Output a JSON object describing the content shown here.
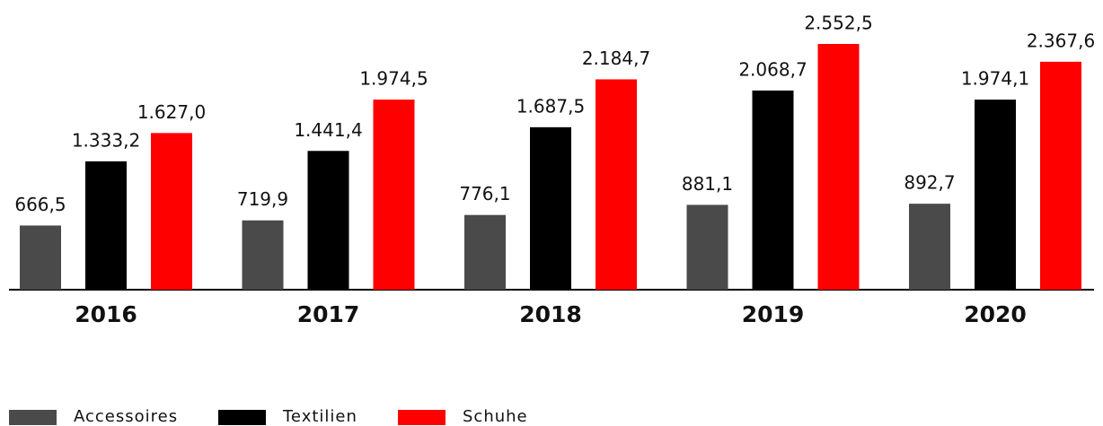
{
  "chart_data": {
    "type": "bar",
    "categories": [
      "2016",
      "2017",
      "2018",
      "2019",
      "2020"
    ],
    "series": [
      {
        "name": "Accessoires",
        "color": "#4a4a4a",
        "values": [
          666.5,
          719.9,
          776.1,
          881.1,
          892.7
        ],
        "value_labels": [
          "666,5",
          "719,9",
          "776,1",
          "881,1",
          "892,7"
        ]
      },
      {
        "name": "Textilien",
        "color": "#000000",
        "values": [
          1333.2,
          1441.4,
          1687.5,
          2068.7,
          1974.1
        ],
        "value_labels": [
          "1.333,2",
          "1.441,4",
          "1.687,5",
          "2.068,7",
          "1.974,1"
        ]
      },
      {
        "name": "Schuhe",
        "color": "#ff0000",
        "values": [
          1627.0,
          1974.5,
          2184.7,
          2552.5,
          2367.6
        ],
        "value_labels": [
          "1.627,0",
          "1.974,5",
          "2.184,7",
          "2.552,5",
          "2.367,6"
        ]
      }
    ],
    "legend": "bottom-left"
  }
}
